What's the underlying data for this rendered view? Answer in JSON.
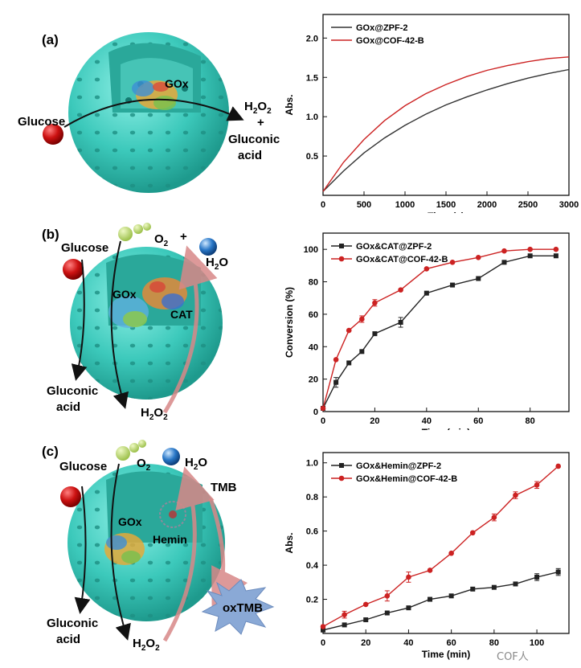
{
  "panels": [
    {
      "tag": "(a)",
      "scheme": {
        "substrate": "Glucose",
        "enzymes": [
          "GOx"
        ],
        "products": [
          "H2O2",
          "+",
          "Gluconic",
          "acid"
        ]
      }
    },
    {
      "tag": "(b)",
      "scheme": {
        "substrate": "Glucose",
        "enzymes": [
          "GOx",
          "CAT"
        ],
        "o2": "O2",
        "plus": "+",
        "water": "H2O",
        "product1": [
          "Gluconic",
          "acid"
        ],
        "product2": "H2O2"
      }
    },
    {
      "tag": "(c)",
      "scheme": {
        "substrate": "Glucose",
        "enzymes": [
          "GOx",
          "Hemin"
        ],
        "o2": "O2",
        "water": "H2O",
        "tmb": "TMB",
        "oxtmb": "oxTMB",
        "product1": [
          "Gluconic",
          "acid"
        ],
        "product2": "H2O2"
      }
    }
  ],
  "chart_data": [
    {
      "type": "line",
      "xlabel": "Time (s)",
      "ylabel": "Abs.",
      "xlim": [
        0,
        3000
      ],
      "ylim": [
        0,
        2.3
      ],
      "xticks": [
        0,
        500,
        1000,
        1500,
        2000,
        2500,
        3000
      ],
      "yticks": [
        0.5,
        1.0,
        1.5,
        2.0
      ],
      "xtick_labels": [
        "0",
        "500",
        "1000",
        "1500",
        "2000",
        "2500",
        "3000"
      ],
      "ytick_labels": [
        "0.5",
        "1.0",
        "1.5",
        "2.0"
      ],
      "legend": "top-left",
      "series": [
        {
          "name": "GOx@ZPF-2",
          "color": "#333333",
          "x": [
            0,
            250,
            500,
            750,
            1000,
            1250,
            1500,
            1750,
            2000,
            2250,
            2500,
            2750,
            3000
          ],
          "y": [
            0.05,
            0.31,
            0.54,
            0.73,
            0.89,
            1.03,
            1.15,
            1.25,
            1.34,
            1.42,
            1.49,
            1.55,
            1.6
          ]
        },
        {
          "name": "GOx@COF-42-B",
          "color": "#cc2222",
          "x": [
            0,
            250,
            500,
            750,
            1000,
            1250,
            1500,
            1750,
            2000,
            2250,
            2500,
            2750,
            3000
          ],
          "y": [
            0.05,
            0.42,
            0.71,
            0.95,
            1.14,
            1.29,
            1.41,
            1.51,
            1.59,
            1.65,
            1.7,
            1.74,
            1.76
          ]
        }
      ]
    },
    {
      "type": "line",
      "xlabel": "Time (min)",
      "ylabel": "Conversion (%)",
      "xlim": [
        0,
        95
      ],
      "ylim": [
        0,
        110
      ],
      "xticks": [
        0,
        20,
        40,
        60,
        80
      ],
      "yticks": [
        0,
        20,
        40,
        60,
        80,
        100
      ],
      "xtick_labels": [
        "0",
        "20",
        "40",
        "60",
        "80"
      ],
      "ytick_labels": [
        "0",
        "20",
        "40",
        "60",
        "80",
        "100"
      ],
      "legend": "top-left",
      "series": [
        {
          "name": "GOx&CAT@ZPF-2",
          "color": "#222222",
          "marker": "square",
          "x": [
            0,
            5,
            10,
            15,
            20,
            30,
            40,
            50,
            60,
            70,
            80,
            90
          ],
          "y": [
            2,
            18,
            30,
            37,
            48,
            55,
            73,
            78,
            82,
            92,
            96,
            96
          ],
          "err": [
            0,
            3,
            0,
            0,
            0,
            3,
            0,
            0,
            0,
            0,
            0,
            0
          ]
        },
        {
          "name": "GOx&CAT@COF-42-B",
          "color": "#cc2222",
          "marker": "circle",
          "x": [
            0,
            5,
            10,
            15,
            20,
            30,
            40,
            50,
            60,
            70,
            80,
            90
          ],
          "y": [
            2,
            32,
            50,
            57,
            67,
            75,
            88,
            92,
            95,
            99,
            100,
            100
          ],
          "err": [
            0,
            0,
            0,
            2,
            2,
            0,
            0,
            0,
            0,
            0,
            0,
            0
          ]
        }
      ]
    },
    {
      "type": "line",
      "xlabel": "Time (min)",
      "ylabel": "Abs.",
      "xlim": [
        0,
        115
      ],
      "ylim": [
        0,
        1.06
      ],
      "xticks": [
        0,
        20,
        40,
        60,
        80,
        100
      ],
      "yticks": [
        0.2,
        0.4,
        0.6,
        0.8,
        1.0
      ],
      "xtick_labels": [
        "0",
        "20",
        "40",
        "60",
        "80",
        "100"
      ],
      "ytick_labels": [
        "0.2",
        "0.4",
        "0.6",
        "0.8",
        "1.0"
      ],
      "legend": "top-left",
      "series": [
        {
          "name": "GOx&Hemin@ZPF-2",
          "color": "#222222",
          "marker": "square",
          "x": [
            0,
            10,
            20,
            30,
            40,
            50,
            60,
            70,
            80,
            90,
            100,
            110
          ],
          "y": [
            0.02,
            0.05,
            0.08,
            0.12,
            0.15,
            0.2,
            0.22,
            0.26,
            0.27,
            0.29,
            0.33,
            0.36
          ],
          "err": [
            0,
            0,
            0,
            0,
            0,
            0,
            0,
            0,
            0,
            0,
            0.02,
            0.02
          ]
        },
        {
          "name": "GOx&Hemin@COF-42-B",
          "color": "#cc2222",
          "marker": "circle",
          "x": [
            0,
            10,
            20,
            30,
            40,
            50,
            60,
            70,
            80,
            90,
            100,
            110
          ],
          "y": [
            0.04,
            0.11,
            0.17,
            0.22,
            0.33,
            0.37,
            0.47,
            0.59,
            0.68,
            0.81,
            0.87,
            0.98
          ],
          "err": [
            0,
            0.02,
            0,
            0.03,
            0.03,
            0,
            0,
            0,
            0.02,
            0.02,
            0.02,
            0
          ]
        }
      ]
    }
  ],
  "watermark": "COF人"
}
